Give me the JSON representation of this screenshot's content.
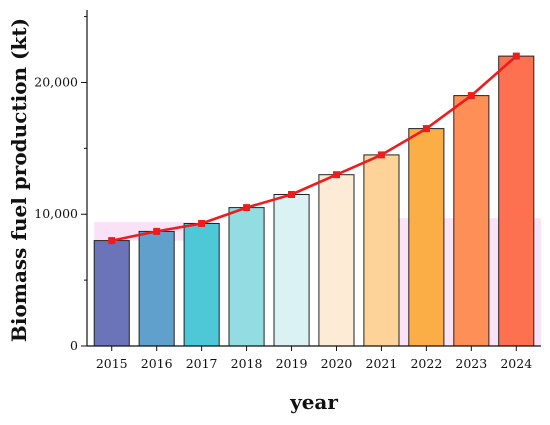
{
  "chart_data": {
    "type": "bar",
    "categories": [
      "2015",
      "2016",
      "2017",
      "2018",
      "2019",
      "2020",
      "2021",
      "2022",
      "2023",
      "2024"
    ],
    "values": [
      8000,
      8700,
      9300,
      10500,
      11500,
      13000,
      14500,
      16500,
      19000,
      22000
    ],
    "line_values": [
      8000,
      8700,
      9300,
      10500,
      11500,
      13000,
      14500,
      16500,
      19000,
      22000
    ],
    "bar_colors": [
      "#6b74b8",
      "#5fa0cc",
      "#4ec8d6",
      "#93dde2",
      "#daf2f4",
      "#fdebd6",
      "#fdd39a",
      "#fbae45",
      "#fd8f57",
      "#fd7050"
    ],
    "line_color": "#ee1c1c",
    "xlabel": "year",
    "ylabel": "Biomass fuel production (kt)",
    "ylim": [
      0,
      25500
    ],
    "yticks": [
      0,
      10000,
      20000
    ],
    "ytick_labels": [
      "0",
      "10,000",
      "20,000"
    ],
    "grid": false
  }
}
